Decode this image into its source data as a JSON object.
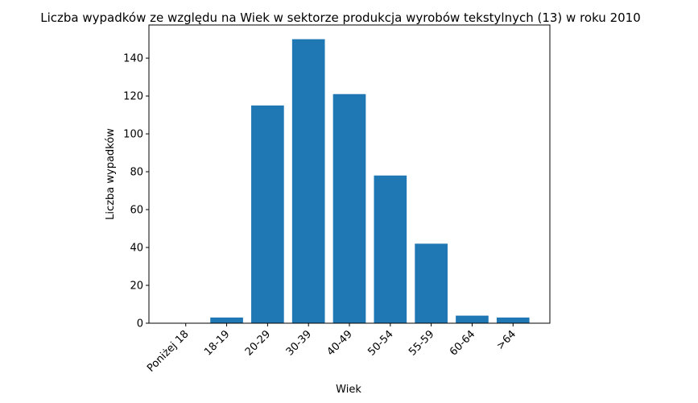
{
  "chart_data": {
    "type": "bar",
    "title": "Liczba wypadków ze względu na Wiek w sektorze produkcja wyrobów tekstylnych  (13)   w roku 2010",
    "xlabel": "Wiek",
    "ylabel": "Liczba wypadków",
    "categories": [
      "Poniżej 18",
      "18-19",
      "20-29",
      "30-39",
      "40-49",
      "50-54",
      "55-59",
      "60-64",
      ">64"
    ],
    "values": [
      0,
      3,
      115,
      150,
      121,
      78,
      42,
      4,
      3
    ],
    "ylim": [
      0,
      157.5
    ],
    "yticks": [
      0,
      20,
      40,
      60,
      80,
      100,
      120,
      140
    ],
    "grid": false,
    "bar_color": "#1f77b4"
  }
}
